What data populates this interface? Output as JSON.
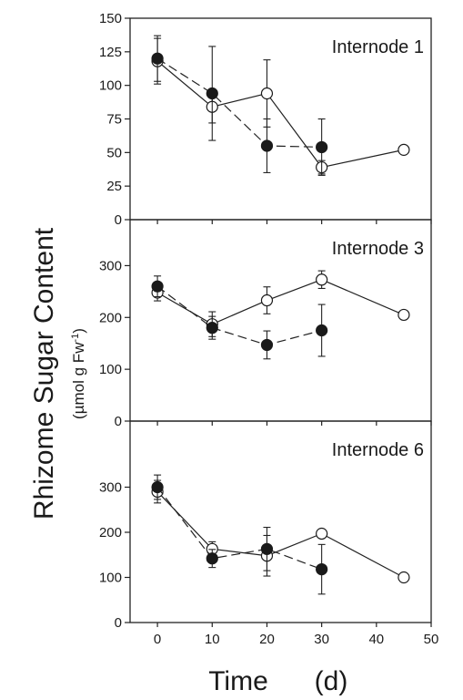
{
  "chart_data": {
    "type": "line",
    "ylabel": "Rhizome Sugar Content",
    "ylabel_units_main": "(µmol g Fw",
    "ylabel_units_sup": "-1",
    "ylabel_units_close": ")",
    "xlabel_main": "Time",
    "xlabel_unit": "(d)",
    "xlim": [
      -5,
      50
    ],
    "xticks": [
      0,
      10,
      20,
      30,
      40,
      50
    ],
    "xtick_labels": [
      "0",
      "10",
      "20",
      "30",
      "40",
      "50"
    ],
    "grid": false,
    "panels": [
      {
        "title": "Internode 1",
        "ylim": [
          0,
          150
        ],
        "yticks": [
          0,
          25,
          50,
          75,
          100,
          125,
          150
        ],
        "ytick_labels": [
          "0",
          "25",
          "50",
          "75",
          "100",
          "125",
          "150"
        ],
        "series": [
          {
            "marker": "open-circle",
            "line": "solid",
            "x": [
              0,
              10,
              20,
              30,
              45
            ],
            "y": [
              118,
              84,
              94,
              39,
              52
            ],
            "err": [
              17,
              12,
              25,
              5,
              0
            ]
          },
          {
            "marker": "filled-circle",
            "line": "dashed",
            "x": [
              0,
              10,
              20,
              30
            ],
            "y": [
              120,
              94,
              55,
              54
            ],
            "err": [
              17,
              35,
              20,
              21
            ]
          }
        ]
      },
      {
        "title": "Internode 3",
        "ylim": [
          0,
          350
        ],
        "yticks": [
          0,
          100,
          200,
          300
        ],
        "ytick_labels": [
          "0",
          "100",
          "200",
          "300"
        ],
        "series": [
          {
            "marker": "open-circle",
            "line": "solid",
            "x": [
              0,
              10,
              20,
              30,
              45
            ],
            "y": [
              248,
              187,
              233,
              273,
              205
            ],
            "err": [
              16,
              24,
              26,
              17,
              0
            ]
          },
          {
            "marker": "filled-circle",
            "line": "dashed",
            "x": [
              0,
              10,
              20,
              30
            ],
            "y": [
              260,
              180,
              147,
              175
            ],
            "err": [
              20,
              22,
              27,
              50
            ]
          }
        ]
      },
      {
        "title": "Internode 6",
        "ylim": [
          0,
          400
        ],
        "yticks": [
          0,
          100,
          200,
          300
        ],
        "ytick_labels": [
          "0",
          "100",
          "200",
          "300"
        ],
        "series": [
          {
            "marker": "open-circle",
            "line": "solid",
            "x": [
              0,
              10,
              20,
              30,
              45
            ],
            "y": [
              290,
              163,
              148,
              197,
              100
            ],
            "err": [
              25,
              16,
              45,
              0,
              0
            ]
          },
          {
            "marker": "filled-circle",
            "line": "dashed",
            "x": [
              0,
              10,
              20,
              30
            ],
            "y": [
              300,
              142,
              163,
              118
            ],
            "err": [
              27,
              20,
              48,
              55
            ]
          }
        ]
      }
    ]
  }
}
